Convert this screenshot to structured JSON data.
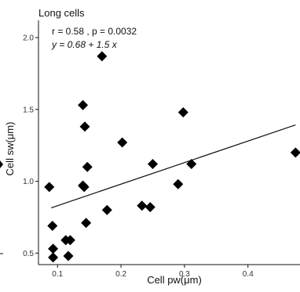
{
  "chart_data": {
    "type": "scatter",
    "title": "Long cells",
    "xlabel": "Cell pw(μm)",
    "ylabel": "Cell sw(μm)",
    "annotations": {
      "corr": "r = 0.58 , p = 0.0032",
      "equation": "y = 0.68 + 1.5 x"
    },
    "xlim": [
      0.07,
      0.482
    ],
    "ylim": [
      0.42,
      2.12
    ],
    "xticks": [
      0.1,
      0.2,
      0.3,
      0.4
    ],
    "xtick_labels": [
      "0.1",
      "0.2",
      "0.3",
      "0.4"
    ],
    "yticks": [
      0.5,
      1.0,
      1.5,
      2.0
    ],
    "ytick_labels": [
      "0.5",
      "1.0",
      "1.5",
      "2.0"
    ],
    "grid": false,
    "marker_color": "#000000",
    "regression": {
      "intercept": 0.68,
      "slope": 1.5,
      "x_range": [
        0.09,
        0.475
      ]
    },
    "points": [
      {
        "x": 0.087,
        "y": 0.96
      },
      {
        "x": 0.092,
        "y": 0.69
      },
      {
        "x": 0.093,
        "y": 0.53
      },
      {
        "x": 0.093,
        "y": 0.47
      },
      {
        "x": 0.113,
        "y": 0.59
      },
      {
        "x": 0.117,
        "y": 0.48
      },
      {
        "x": 0.12,
        "y": 0.59
      },
      {
        "x": 0.14,
        "y": 1.53
      },
      {
        "x": 0.14,
        "y": 0.97
      },
      {
        "x": 0.142,
        "y": 0.96
      },
      {
        "x": 0.143,
        "y": 1.38
      },
      {
        "x": 0.145,
        "y": 0.71
      },
      {
        "x": 0.147,
        "y": 1.1
      },
      {
        "x": 0.17,
        "y": 1.87
      },
      {
        "x": 0.178,
        "y": 0.8
      },
      {
        "x": 0.202,
        "y": 1.27
      },
      {
        "x": 0.233,
        "y": 0.83
      },
      {
        "x": 0.246,
        "y": 0.82
      },
      {
        "x": 0.25,
        "y": 1.12
      },
      {
        "x": 0.29,
        "y": 0.98
      },
      {
        "x": 0.298,
        "y": 1.48
      },
      {
        "x": 0.311,
        "y": 1.12
      },
      {
        "x": 0.475,
        "y": 1.2
      }
    ]
  }
}
